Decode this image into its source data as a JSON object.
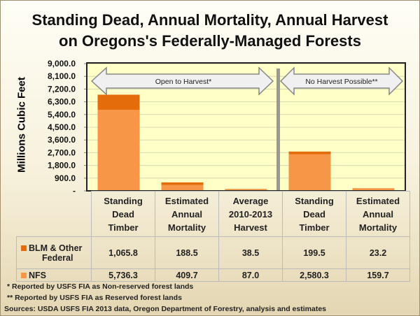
{
  "chart_data": {
    "type": "bar",
    "stacked": true,
    "title": "Standing Dead, Annual Mortality, Annual Harvest on Oregons's Federally-Managed Forests",
    "title_lines": [
      "Standing Dead, Annual Mortality, Annual Harvest",
      "on Oregons's Federally-Managed Forests"
    ],
    "ylabel": "Millions Cubic Feet",
    "ylim": [
      0,
      9000
    ],
    "yticks": [
      "-",
      "900.0",
      "1,800.0",
      "2,700.0",
      "3,600.0",
      "4,500.0",
      "5,400.0",
      "6,300.0",
      "7,200.0",
      "8,100.0",
      "9,000.0"
    ],
    "categories": [
      [
        "Standing",
        "Dead",
        "Timber"
      ],
      [
        "Estimated",
        "Annual",
        "Mortality"
      ],
      [
        "Average",
        "2010-2013",
        "Harvest"
      ],
      [
        "Standing",
        "Dead",
        "Timber"
      ],
      [
        "Estimated",
        "Annual",
        "Mortality"
      ]
    ],
    "series": [
      {
        "name": "NFS",
        "label": "NFS",
        "color": "#f79646",
        "values": [
          5736.3,
          409.7,
          87.0,
          2580.3,
          159.7
        ],
        "display": [
          "5,736.3",
          "409.7",
          "87.0",
          "2,580.3",
          "159.7"
        ]
      },
      {
        "name": "BLM & Other Federal",
        "label": [
          "BLM & Other",
          "Federal"
        ],
        "color": "#e46c0a",
        "values": [
          1065.8,
          188.5,
          38.5,
          199.5,
          23.2
        ],
        "display": [
          "1,065.8",
          "188.5",
          "38.5",
          "199.5",
          "23.2"
        ]
      }
    ],
    "annotations": [
      "Open to Harvest*",
      "No Harvest Possible**"
    ],
    "grid": true
  },
  "footnotes": [
    "*   Reported by USFS FIA as Non-reserved forest lands",
    "** Reported by USFS FIA as Reserved forest lands",
    "Sources: USDA USFS FIA 2013 data, Oregon Department of Forestry,  analysis and estimates"
  ]
}
